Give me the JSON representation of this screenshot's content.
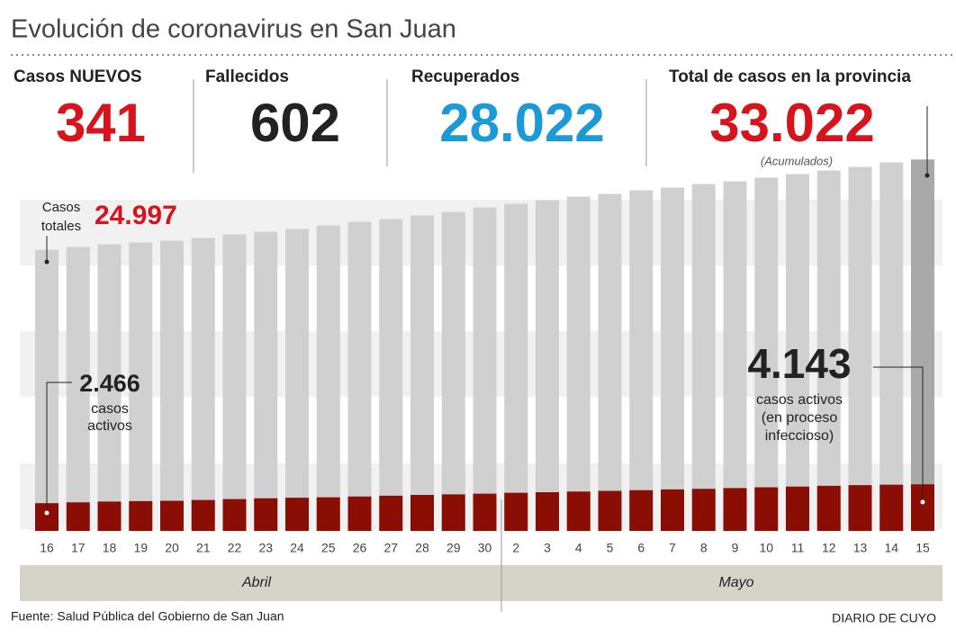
{
  "title": "Evolución de coronavirus en San Juan",
  "stats": [
    {
      "label": "Casos NUEVOS",
      "value": "341",
      "color": "#d7141e"
    },
    {
      "label": "Fallecidos",
      "value": "602",
      "color": "#222222"
    },
    {
      "label": "Recuperados",
      "value": "28.022",
      "color": "#1a9ad6"
    },
    {
      "label": "Total de casos en la provincia",
      "value": "33.022",
      "color": "#d7141e"
    }
  ],
  "accumulated_note": "(Acumulados)",
  "chart_data": {
    "type": "bar",
    "overlay": true,
    "categories": [
      "16",
      "17",
      "18",
      "19",
      "20",
      "21",
      "22",
      "23",
      "24",
      "25",
      "26",
      "27",
      "28",
      "29",
      "30",
      "2",
      "3",
      "4",
      "5",
      "6",
      "7",
      "8",
      "9",
      "10",
      "11",
      "12",
      "13",
      "14",
      "15"
    ],
    "series": [
      {
        "color": "#d0d0d0",
        "highlight_color": "#a9a9a9",
        "values": [
          24997,
          25240,
          25480,
          25640,
          25800,
          26040,
          26360,
          26600,
          26840,
          27160,
          27480,
          27720,
          28040,
          28360,
          28760,
          29080,
          29400,
          29720,
          29960,
          30280,
          30520,
          30840,
          31080,
          31400,
          31720,
          32040,
          32360,
          32760,
          33022
        ]
      },
      {
        "color": "#8b0e04",
        "values": [
          2466,
          2540,
          2610,
          2650,
          2680,
          2750,
          2830,
          2900,
          2950,
          2990,
          3060,
          3130,
          3200,
          3250,
          3310,
          3390,
          3440,
          3500,
          3560,
          3620,
          3690,
          3740,
          3810,
          3880,
          3940,
          4010,
          4070,
          4110,
          4143
        ]
      }
    ],
    "ylim": [
      0,
      35000
    ],
    "months": [
      "Abril",
      "Mayo"
    ],
    "annotations": {
      "total_label": [
        "Casos",
        "totales"
      ],
      "total_first": "24.997",
      "active_first": "2.466",
      "active_first_label": [
        "casos",
        "activos"
      ],
      "active_last": "4.143",
      "active_last_label": [
        "casos activos",
        "(en proceso",
        "infeccioso)"
      ]
    }
  },
  "source": "Fuente: Salud Pública del Gobierno de San Juan",
  "brand": "DIARIO DE CUYO"
}
